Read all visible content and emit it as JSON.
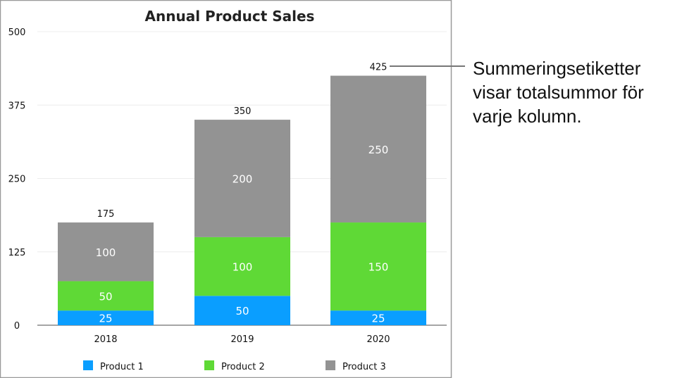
{
  "chart_data": {
    "type": "bar",
    "stacked": true,
    "title": "Annual Product Sales",
    "categories": [
      "2018",
      "2019",
      "2020"
    ],
    "series": [
      {
        "name": "Product 1",
        "values": [
          25,
          50,
          25
        ],
        "color": "#0a9eff"
      },
      {
        "name": "Product 2",
        "values": [
          50,
          100,
          150
        ],
        "color": "#5fd936"
      },
      {
        "name": "Product 3",
        "values": [
          100,
          200,
          250
        ],
        "color": "#939393"
      }
    ],
    "totals": [
      175,
      350,
      425
    ],
    "yticks": [
      0,
      125,
      250,
      375,
      500
    ],
    "ylim": [
      0,
      500
    ],
    "grid": true,
    "legend": "bottom"
  },
  "callout": {
    "lines": [
      "Summeringsetiketter",
      "visar totalsummor för",
      "varje kolumn."
    ]
  }
}
